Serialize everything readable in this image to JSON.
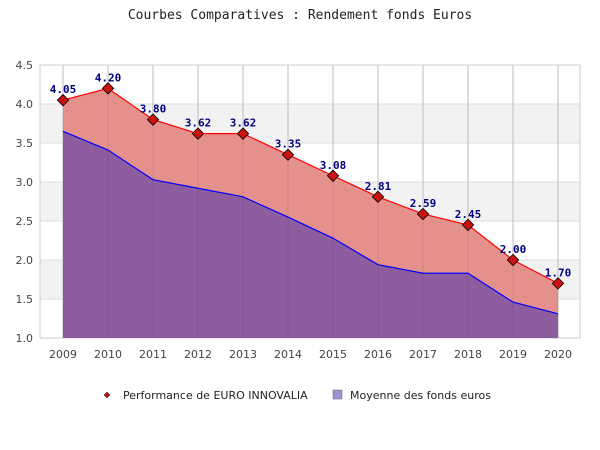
{
  "chart_data": {
    "type": "area",
    "title": "Courbes Comparatives : Rendement fonds Euros",
    "xlabel": "",
    "ylabel": "",
    "ylim": [
      1.0,
      4.5
    ],
    "yticks": [
      "1.0",
      "1.5",
      "2.0",
      "2.5",
      "3.0",
      "3.5",
      "4.0",
      "4.5"
    ],
    "categories": [
      "2009",
      "2010",
      "2011",
      "2012",
      "2013",
      "2014",
      "2015",
      "2016",
      "2017",
      "2018",
      "2019",
      "2020"
    ],
    "grid": true,
    "legend_position": "bottom",
    "series": [
      {
        "name": "Performance de EURO INNOVALIA",
        "color": "#ff0000",
        "fill": "#e38a86",
        "values": [
          4.05,
          4.2,
          3.8,
          3.62,
          3.62,
          3.35,
          3.08,
          2.81,
          2.59,
          2.45,
          2.0,
          1.7
        ],
        "labels": [
          "4.05",
          "4.20",
          "3.80",
          "3.62",
          "3.62",
          "3.35",
          "3.08",
          "2.81",
          "2.59",
          "2.45",
          "2.00",
          "1.70"
        ]
      },
      {
        "name": "Moyenne des fonds euros",
        "color": "#0000ff",
        "fill": "#8659a2",
        "values": [
          3.65,
          3.41,
          3.03,
          2.92,
          2.81,
          2.55,
          2.28,
          1.94,
          1.83,
          1.83,
          1.46,
          1.31
        ]
      }
    ]
  }
}
